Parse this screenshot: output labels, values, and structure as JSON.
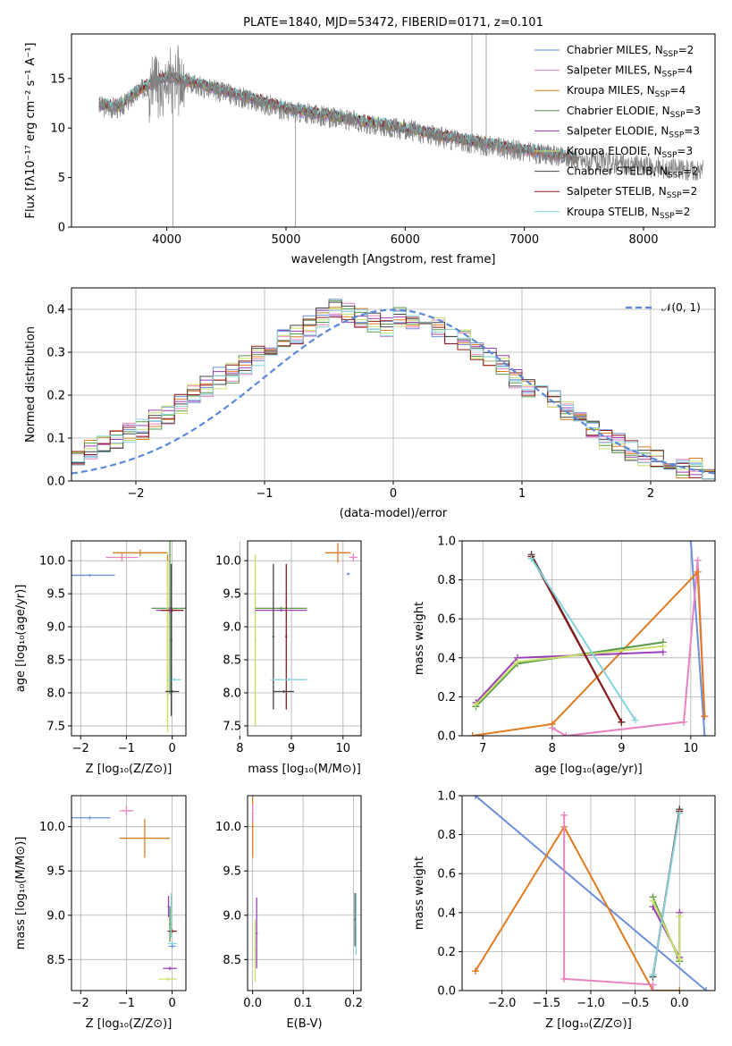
{
  "colors": {
    "Chabrier MILES": "#6b8fd9",
    "Salpeter MILES": "#e882c0",
    "Kroupa MILES": "#e07b20",
    "Chabrier ELODIE": "#55994a",
    "Salpeter ELODIE": "#9b3fb8",
    "Kroupa ELODIE": "#c8e06a",
    "Chabrier STELIB": "#444444",
    "Salpeter STELIB": "#8c1a1a",
    "Kroupa STELIB": "#85d4dc",
    "data": "#808080",
    "normal": "#5b8ad9"
  },
  "chart_data": [
    {
      "id": "spectrum",
      "type": "line",
      "title": "PLATE=1840, MJD=53472, FIBERID=0171, z=0.101",
      "xlabel": "wavelength [Angstrom, rest frame]",
      "ylabel": "Flux [fλ10⁻¹⁷ erg cm⁻² s⁻¹ A⁻¹]",
      "xlim": [
        3200,
        8600
      ],
      "ylim": [
        0,
        19.5
      ],
      "xticks": [
        4000,
        5000,
        6000,
        7000,
        8000
      ],
      "yticks": [
        0,
        5,
        10,
        15
      ],
      "continuum": [
        [
          3430,
          12.2
        ],
        [
          3600,
          12.0
        ],
        [
          3800,
          14.0
        ],
        [
          4000,
          15.0
        ],
        [
          4200,
          14.5
        ],
        [
          4500,
          13.5
        ],
        [
          4800,
          12.5
        ],
        [
          5000,
          11.8
        ],
        [
          5500,
          10.8
        ],
        [
          6000,
          9.8
        ],
        [
          6500,
          8.6
        ],
        [
          7000,
          7.6
        ],
        [
          7500,
          6.7
        ],
        [
          8000,
          6.1
        ],
        [
          8500,
          5.7
        ]
      ],
      "legend": [
        {
          "lib": "Chabrier MILES",
          "label": "Chabrier MILES, N",
          "nssp": "=2"
        },
        {
          "lib": "Salpeter MILES",
          "label": "Salpeter MILES, N",
          "nssp": "=4"
        },
        {
          "lib": "Kroupa MILES",
          "label": "Kroupa MILES, N",
          "nssp": "=4"
        },
        {
          "lib": "Chabrier ELODIE",
          "label": "Chabrier ELODIE, N",
          "nssp": "=3"
        },
        {
          "lib": "Salpeter ELODIE",
          "label": "Salpeter ELODIE, N",
          "nssp": "=3"
        },
        {
          "lib": "Kroupa ELODIE",
          "label": "Kroupa ELODIE, N",
          "nssp": "=3"
        },
        {
          "lib": "Chabrier STELIB",
          "label": "Chabrier STELIB, N",
          "nssp": "=2"
        },
        {
          "lib": "Salpeter STELIB",
          "label": "Salpeter STELIB, N",
          "nssp": "=2"
        },
        {
          "lib": "Kroupa STELIB",
          "label": "Kroupa STELIB, N",
          "nssp": "=2"
        }
      ],
      "legend_sub": "SSP"
    },
    {
      "id": "histogram",
      "type": "line",
      "xlabel": "(data-model)/error",
      "ylabel": "Normed distribution",
      "xlim": [
        -2.5,
        2.5
      ],
      "ylim": [
        0,
        0.45
      ],
      "xticks": [
        -2,
        -1,
        0,
        1,
        2
      ],
      "yticks": [
        0.0,
        0.1,
        0.2,
        0.3,
        0.4
      ],
      "legend": "𝒩(0, 1)",
      "series_shape": [
        0.06,
        0.07,
        0.08,
        0.1,
        0.11,
        0.12,
        0.14,
        0.15,
        0.18,
        0.2,
        0.22,
        0.24,
        0.25,
        0.27,
        0.29,
        0.31,
        0.33,
        0.34,
        0.36,
        0.38,
        0.4,
        0.39,
        0.38,
        0.37,
        0.36,
        0.38,
        0.37,
        0.35,
        0.36,
        0.34,
        0.33,
        0.3,
        0.29,
        0.27,
        0.24,
        0.22,
        0.2,
        0.19,
        0.16,
        0.14,
        0.12,
        0.1,
        0.09,
        0.07,
        0.06,
        0.05,
        0.04,
        0.03,
        0.03,
        0.02
      ]
    },
    {
      "id": "age-vs-z",
      "type": "scatter",
      "xlabel": "Z [log₁₀(Z/Z⊙)]",
      "ylabel": "age  [log₁₀(age/yr)]",
      "xlim": [
        -2.2,
        0.3
      ],
      "ylim": [
        7.35,
        10.3
      ],
      "xticks": [
        -2,
        -1,
        0
      ],
      "yticks": [
        7.5,
        8.0,
        8.5,
        9.0,
        9.5,
        10.0
      ],
      "points": [
        {
          "lib": "Chabrier MILES",
          "x": -1.8,
          "y": 9.78,
          "xerr": 0.55,
          "yerr": 0.02
        },
        {
          "lib": "Kroupa MILES",
          "x": -0.7,
          "y": 10.12,
          "xerr": 0.6,
          "yerr": 0.05
        },
        {
          "lib": "Salpeter MILES",
          "x": -1.1,
          "y": 10.05,
          "xerr": 0.35,
          "yerr": 0.06
        },
        {
          "lib": "Kroupa MILES",
          "x": -0.1,
          "y": 9.0,
          "xerr": 0.02,
          "yerr": 1.1
        },
        {
          "lib": "Chabrier ELODIE",
          "x": -0.05,
          "y": 9.28,
          "xerr": 0.4,
          "yerr": 1.3
        },
        {
          "lib": "Salpeter ELODIE",
          "x": -0.05,
          "y": 9.25,
          "xerr": 0.3,
          "yerr": 0.05
        },
        {
          "lib": "Kroupa ELODIE",
          "x": -0.1,
          "y": 8.7,
          "xerr": 0.02,
          "yerr": 1.3
        },
        {
          "lib": "Chabrier STELIB",
          "x": 0.0,
          "y": 8.02,
          "xerr": 0.15,
          "yerr": 0.02
        },
        {
          "lib": "Salpeter STELIB",
          "x": 0.0,
          "y": 9.25,
          "xerr": 0.25,
          "yerr": 0.02
        },
        {
          "lib": "Kroupa STELIB",
          "x": 0.05,
          "y": 8.2,
          "xerr": 0.15,
          "yerr": 0.02
        },
        {
          "lib": "Chabrier STELIB",
          "x": -0.02,
          "y": 8.8,
          "xerr": 0.02,
          "yerr": 1.15
        }
      ]
    },
    {
      "id": "age-vs-mass",
      "type": "scatter",
      "xlabel": "mass [log₁₀(M/M⊙)]",
      "xlim": [
        8.15,
        10.35
      ],
      "ylim": [
        7.35,
        10.3
      ],
      "xticks": [
        8,
        9,
        10
      ],
      "yticks": [
        7.5,
        8.0,
        8.5,
        9.0,
        9.5,
        10.0
      ],
      "points": [
        {
          "lib": "Kroupa MILES",
          "x": 9.9,
          "y": 10.12,
          "xerr": 0.25,
          "yerr": 0.15
        },
        {
          "lib": "Salpeter MILES",
          "x": 10.2,
          "y": 10.05,
          "xerr": 0.08,
          "yerr": 0.06
        },
        {
          "lib": "Chabrier MILES",
          "x": 10.1,
          "y": 9.8,
          "xerr": 0.03,
          "yerr": 0.02
        },
        {
          "lib": "Kroupa ELODIE",
          "x": 8.3,
          "y": 8.8,
          "xerr": 0.02,
          "yerr": 1.3
        },
        {
          "lib": "Chabrier ELODIE",
          "x": 8.8,
          "y": 9.28,
          "xerr": 0.5,
          "yerr": 0.02
        },
        {
          "lib": "Salpeter ELODIE",
          "x": 8.8,
          "y": 9.25,
          "xerr": 0.5,
          "yerr": 0.02
        },
        {
          "lib": "Chabrier STELIB",
          "x": 8.65,
          "y": 8.85,
          "xerr": 0.02,
          "yerr": 1.1
        },
        {
          "lib": "Salpeter STELIB",
          "x": 8.9,
          "y": 8.85,
          "xerr": 0.02,
          "yerr": 1.1
        },
        {
          "lib": "Chabrier STELIB",
          "x": 8.85,
          "y": 8.02,
          "xerr": 0.2,
          "yerr": 0.02
        },
        {
          "lib": "Kroupa STELIB",
          "x": 8.95,
          "y": 8.2,
          "xerr": 0.35,
          "yerr": 0.02
        }
      ]
    },
    {
      "id": "weight-vs-age",
      "type": "line",
      "xlabel": "age  [log₁₀(age/yr)]",
      "ylabel": "mass weight",
      "xlim": [
        6.7,
        10.35
      ],
      "ylim": [
        0,
        1
      ],
      "xticks": [
        7,
        8,
        9,
        10
      ],
      "yticks": [
        0.0,
        0.2,
        0.4,
        0.6,
        0.8,
        1.0
      ],
      "series": [
        {
          "lib": "Chabrier MILES",
          "x": [
            10.0,
            10.2
          ],
          "y": [
            1.0,
            0.0
          ]
        },
        {
          "lib": "Salpeter MILES",
          "x": [
            8.0,
            8.2,
            9.9,
            10.1,
            10.2
          ],
          "y": [
            0.04,
            0.0,
            0.07,
            0.9,
            0.1
          ]
        },
        {
          "lib": "Kroupa MILES",
          "x": [
            6.85,
            8.0,
            10.1,
            10.2
          ],
          "y": [
            0.0,
            0.06,
            0.84,
            0.1
          ]
        },
        {
          "lib": "Chabrier ELODIE",
          "x": [
            6.9,
            7.5,
            9.6
          ],
          "y": [
            0.15,
            0.37,
            0.48
          ]
        },
        {
          "lib": "Salpeter ELODIE",
          "x": [
            6.9,
            7.5,
            9.6
          ],
          "y": [
            0.17,
            0.4,
            0.43
          ]
        },
        {
          "lib": "Kroupa ELODIE",
          "x": [
            6.9,
            7.5,
            9.6
          ],
          "y": [
            0.16,
            0.38,
            0.46
          ]
        },
        {
          "lib": "Chabrier STELIB",
          "x": [
            7.7,
            9.0
          ],
          "y": [
            0.93,
            0.07
          ]
        },
        {
          "lib": "Salpeter STELIB",
          "x": [
            7.7,
            9.0
          ],
          "y": [
            0.92,
            0.07
          ]
        },
        {
          "lib": "Kroupa STELIB",
          "x": [
            7.7,
            9.2
          ],
          "y": [
            0.91,
            0.08
          ]
        }
      ]
    },
    {
      "id": "mass-vs-z",
      "type": "scatter",
      "xlabel": "Z [log₁₀(Z/Z⊙)]",
      "ylabel": "mass [log₁₀(M/M⊙)]",
      "xlim": [
        -2.2,
        0.3
      ],
      "ylim": [
        8.15,
        10.35
      ],
      "xticks": [
        -2,
        -1,
        0
      ],
      "yticks": [
        8.5,
        9.0,
        9.5,
        10.0
      ],
      "points": [
        {
          "lib": "Chabrier MILES",
          "x": -1.8,
          "y": 10.1,
          "xerr": 0.45,
          "yerr": 0.02
        },
        {
          "lib": "Salpeter MILES",
          "x": -1.0,
          "y": 10.18,
          "xerr": 0.15,
          "yerr": 0.05
        },
        {
          "lib": "Kroupa MILES",
          "x": -0.6,
          "y": 9.87,
          "xerr": 0.55,
          "yerr": 0.22
        },
        {
          "lib": "Kroupa ELODIE",
          "x": -0.1,
          "y": 8.28,
          "xerr": 0.2,
          "yerr": 0.02
        },
        {
          "lib": "Salpeter ELODIE",
          "x": -0.05,
          "y": 8.4,
          "xerr": 0.15,
          "yerr": 0.02
        },
        {
          "lib": "Salpeter STELIB",
          "x": 0.0,
          "y": 8.82,
          "xerr": 0.1,
          "yerr": 0.02
        },
        {
          "lib": "Kroupa STELIB",
          "x": 0.0,
          "y": 8.68,
          "xerr": 0.1,
          "yerr": 0.02
        },
        {
          "lib": "Chabrier MILES",
          "x": 0.0,
          "y": 8.65,
          "xerr": 0.08,
          "yerr": 0.02
        },
        {
          "lib": "Chabrier ELODIE",
          "x": -0.05,
          "y": 8.9,
          "xerr": 0.02,
          "yerr": 0.2
        },
        {
          "lib": "Kroupa STELIB",
          "x": -0.02,
          "y": 9.0,
          "xerr": 0.02,
          "yerr": 0.25
        },
        {
          "lib": "Salpeter ELODIE",
          "x": -0.08,
          "y": 9.1,
          "xerr": 0.02,
          "yerr": 0.12
        }
      ]
    },
    {
      "id": "mass-vs-ebv",
      "type": "scatter",
      "xlabel": "E(B-V)",
      "xlim": [
        -0.01,
        0.215
      ],
      "ylim": [
        8.15,
        10.35
      ],
      "xticks": [
        0.0,
        0.1,
        0.2
      ],
      "yticks": [
        8.5,
        9.0,
        9.5,
        10.0
      ],
      "points": [
        {
          "lib": "Kroupa MILES",
          "x": 0.0,
          "y": 10.0,
          "xerr": 0.002,
          "yerr": 0.35
        },
        {
          "lib": "Salpeter MILES",
          "x": 0.0,
          "y": 10.15,
          "xerr": 0.002,
          "yerr": 0.1
        },
        {
          "lib": "Salpeter ELODIE",
          "x": 0.008,
          "y": 8.8,
          "xerr": 0.002,
          "yerr": 0.4
        },
        {
          "lib": "Kroupa ELODIE",
          "x": 0.005,
          "y": 8.6,
          "xerr": 0.002,
          "yerr": 0.35
        },
        {
          "lib": "Chabrier STELIB",
          "x": 0.203,
          "y": 8.95,
          "xerr": 0.002,
          "yerr": 0.3
        },
        {
          "lib": "Kroupa STELIB",
          "x": 0.205,
          "y": 8.9,
          "xerr": 0.002,
          "yerr": 0.35
        }
      ]
    },
    {
      "id": "weight-vs-z",
      "type": "line",
      "xlabel": "Z [log₁₀(Z/Z⊙)]",
      "ylabel": "mass weight",
      "xlim": [
        -2.45,
        0.4
      ],
      "ylim": [
        0,
        1
      ],
      "xticks": [
        -2.0,
        -1.5,
        -1.0,
        -0.5,
        0.0
      ],
      "yticks": [
        0.0,
        0.2,
        0.4,
        0.6,
        0.8,
        1.0
      ],
      "series": [
        {
          "lib": "Chabrier MILES",
          "x": [
            -2.3,
            0.3
          ],
          "y": [
            1.0,
            0.0
          ]
        },
        {
          "lib": "Kroupa MILES",
          "x": [
            -2.3,
            -1.3,
            -0.3,
            0.0
          ],
          "y": [
            0.1,
            0.84,
            0.0,
            0.0
          ]
        },
        {
          "lib": "Salpeter MILES",
          "x": [
            -1.3,
            -1.3,
            -0.3,
            -0.3
          ],
          "y": [
            0.9,
            0.06,
            0.03,
            0.0
          ]
        },
        {
          "lib": "Chabrier ELODIE",
          "x": [
            -0.3,
            0.0
          ],
          "y": [
            0.48,
            0.15
          ]
        },
        {
          "lib": "Salpeter ELODIE",
          "x": [
            -0.3,
            0.0,
            0.0
          ],
          "y": [
            0.43,
            0.17,
            0.4
          ]
        },
        {
          "lib": "Kroupa ELODIE",
          "x": [
            -0.3,
            0.0,
            0.0
          ],
          "y": [
            0.46,
            0.16,
            0.38
          ]
        },
        {
          "lib": "Chabrier STELIB",
          "x": [
            -0.3,
            0.0
          ],
          "y": [
            0.07,
            0.93
          ]
        },
        {
          "lib": "Salpeter STELIB",
          "x": [
            -0.3,
            0.0
          ],
          "y": [
            0.08,
            0.92
          ]
        },
        {
          "lib": "Kroupa STELIB",
          "x": [
            -0.3,
            0.0
          ],
          "y": [
            0.08,
            0.91
          ]
        }
      ]
    }
  ]
}
